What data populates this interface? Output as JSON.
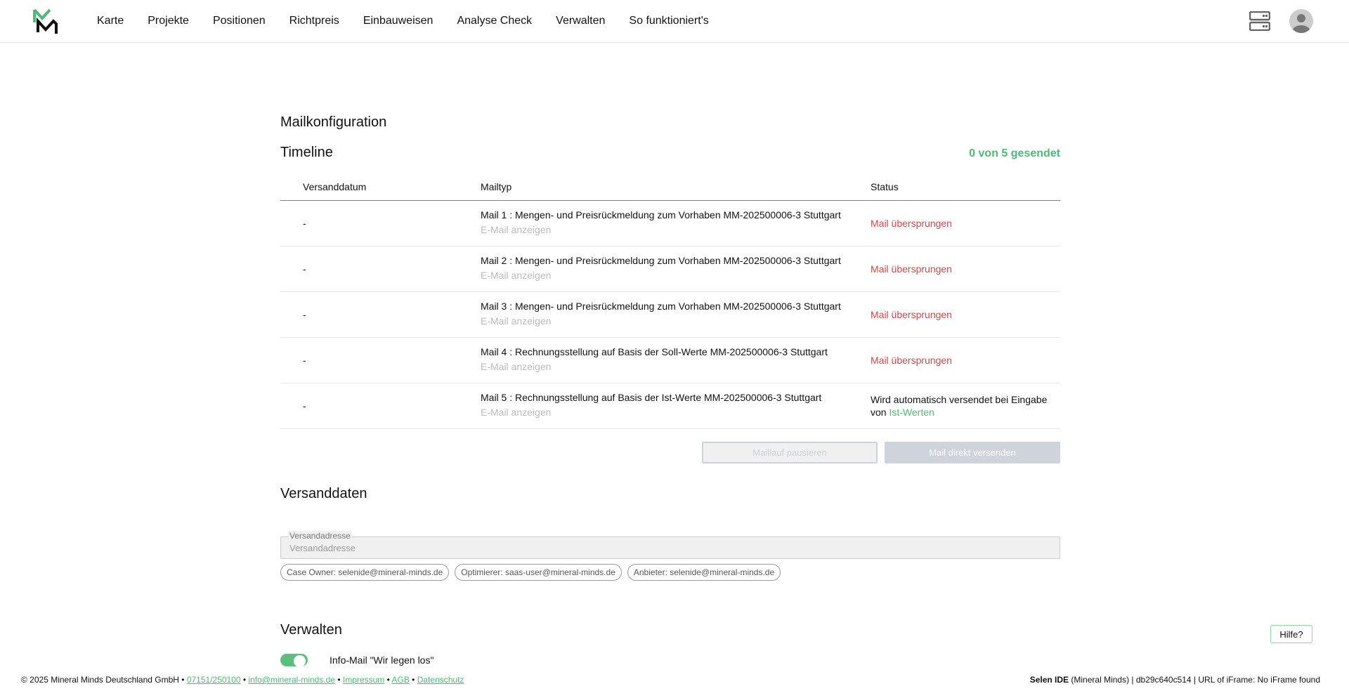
{
  "nav": {
    "items": [
      "Karte",
      "Projekte",
      "Positionen",
      "Richtpreis",
      "Einbauweisen",
      "Analyse Check",
      "Verwalten",
      "So funktioniert's"
    ],
    "icons": [
      "server-icon",
      "avatar-icon"
    ]
  },
  "page": {
    "title": "Mailkonfiguration",
    "timeline_title": "Timeline",
    "counter": "0 von 5 gesendet"
  },
  "table": {
    "headers": [
      "Versanddatum",
      "Mailtyp",
      "Status"
    ],
    "rows": [
      {
        "date": "-",
        "type": "Mail 1 : Mengen- und Preisrückmeldung zum Vorhaben MM-202500006-3 Stuttgart",
        "link": "E-Mail anzeigen",
        "status": "Mail übersprungen"
      },
      {
        "date": "-",
        "type": "Mail 2 : Mengen- und Preisrückmeldung zum Vorhaben MM-202500006-3 Stuttgart",
        "link": "E-Mail anzeigen",
        "status": "Mail übersprungen"
      },
      {
        "date": "-",
        "type": "Mail 3 : Mengen- und Preisrückmeldung zum Vorhaben MM-202500006-3 Stuttgart",
        "link": "E-Mail anzeigen",
        "status": "Mail übersprungen"
      },
      {
        "date": "-",
        "type": "Mail 4 : Rechnungsstellung auf Basis der Soll-Werte MM-202500006-3 Stuttgart",
        "link": "E-Mail anzeigen",
        "status": "Mail übersprungen"
      },
      {
        "date": "-",
        "type": "Mail 5 : Rechnungsstellung auf Basis der Ist-Werte MM-202500006-3 Stuttgart",
        "link": "E-Mail anzeigen",
        "status_prefix": "Wird automatisch versendet bei Eingabe von",
        "status_link": "Ist-Werten"
      }
    ]
  },
  "buttons": {
    "pause": "Maillauf pausieren",
    "send": "Mail direkt versenden"
  },
  "versand": {
    "title": "Versanddaten",
    "label": "Versandadresse",
    "placeholder": "Versandadresse",
    "chips": [
      "Case Owner: selenide@mineral-minds.de",
      "Optimierer: saas-user@mineral-minds.de",
      "Anbieter: selenide@mineral-minds.de"
    ]
  },
  "verwalten": {
    "title": "Verwalten",
    "toggle_label": "Info-Mail \"Wir legen los\"",
    "toggle_on": true
  },
  "footer": {
    "copyright": "© 2025 Mineral Minds Deutschland GmbH •",
    "phone": "07151/250100",
    "email": "info@mineral-minds.de",
    "impressum": "Impressum",
    "agb": "AGB",
    "datenschutz": "Datenschutz",
    "sep": "•",
    "ide_bold": "Selen IDE",
    "ide_rest": "(Mineral Minds) | db29c640c514 | URL of iFrame: No iFrame found"
  },
  "help": "Hilfe?",
  "colors": {
    "accent": "#4cbb75",
    "error": "#d0484a"
  }
}
